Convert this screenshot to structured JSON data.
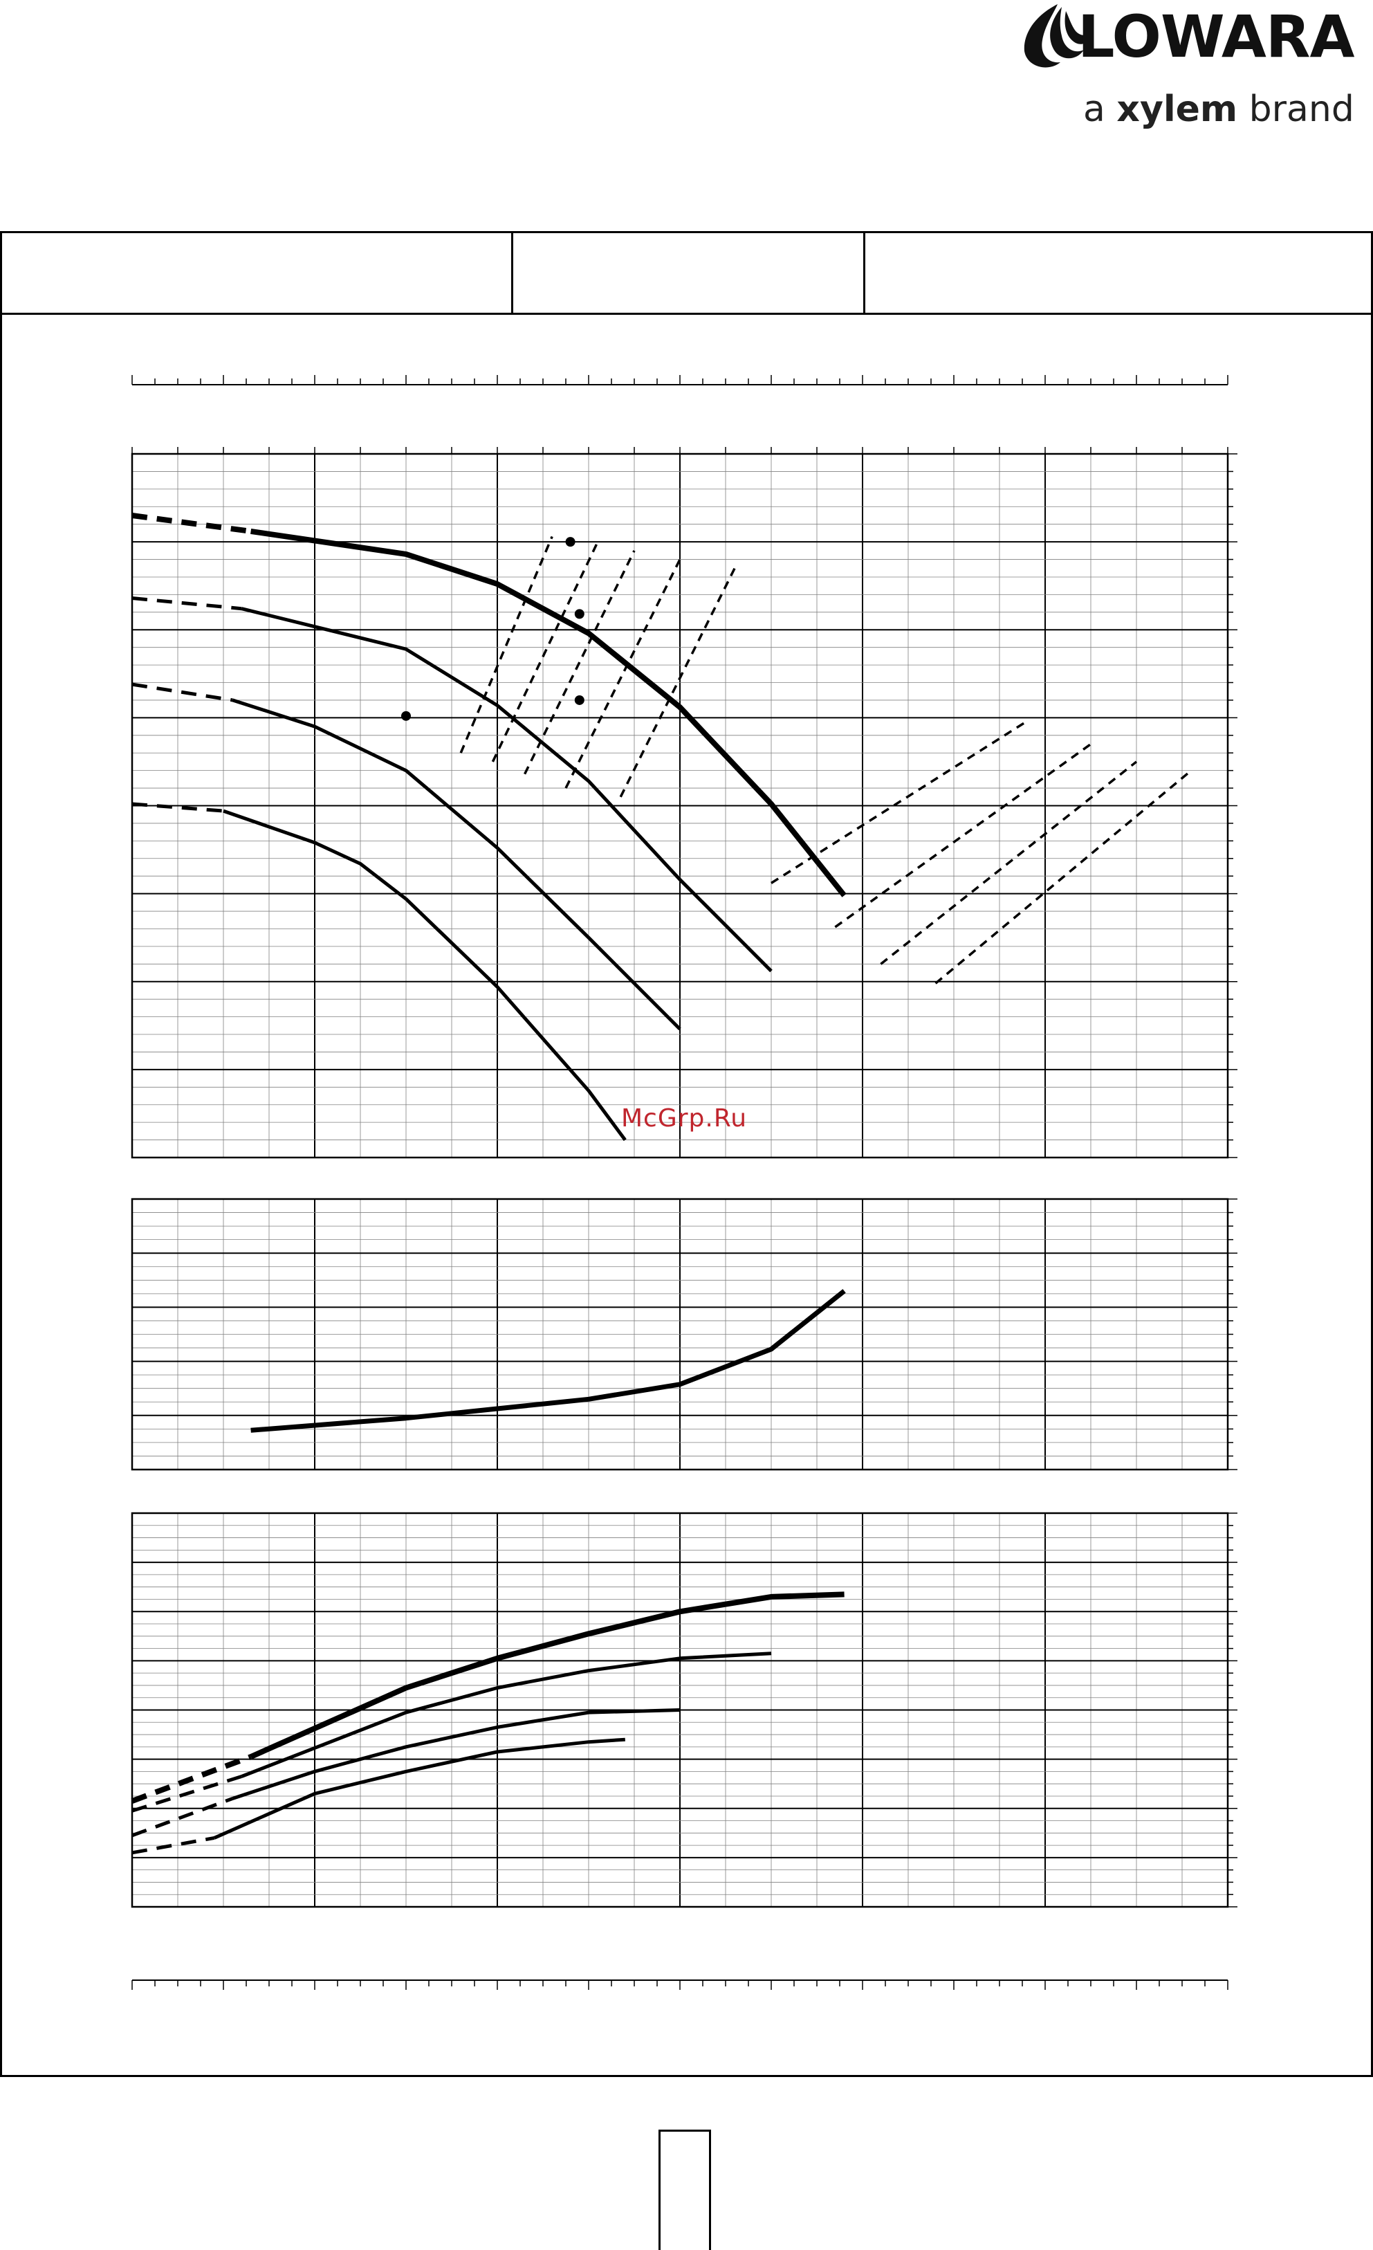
{
  "brand": {
    "name": "LOWARA",
    "tagline_a": "a ",
    "tagline_b": "xylem",
    "tagline_c": " brand"
  },
  "watermark": "McGrp.Ru",
  "colors": {
    "line": "#000000",
    "grid": "#808080",
    "watermark": "#c0252d"
  },
  "chart_data": [
    {
      "type": "line",
      "panel": "head",
      "grid": true,
      "x_unit": "flow (unlabeled)",
      "series": [
        {
          "values": [
            [
              0,
              36.5
            ],
            [
              1.3,
              35.6
            ],
            [
              3,
              34.3
            ],
            [
              4,
              32.6
            ],
            [
              5,
              29.8
            ],
            [
              6,
              25.6
            ],
            [
              7,
              20.1
            ],
            [
              7.8,
              14.9
            ]
          ]
        },
        {
          "values": [
            [
              0,
              31.8
            ],
            [
              1.2,
              31.2
            ],
            [
              3,
              28.9
            ],
            [
              4,
              25.7
            ],
            [
              5,
              21.4
            ],
            [
              6,
              15.8
            ],
            [
              7,
              10.6
            ]
          ]
        },
        {
          "values": [
            [
              0,
              26.9
            ],
            [
              1.1,
              26.0
            ],
            [
              2,
              24.5
            ],
            [
              3,
              22.0
            ],
            [
              4,
              17.6
            ],
            [
              5,
              12.5
            ],
            [
              6,
              7.3
            ]
          ]
        },
        {
          "values": [
            [
              0,
              20.1
            ],
            [
              1,
              19.7
            ],
            [
              2,
              17.9
            ],
            [
              2.5,
              16.7
            ],
            [
              3,
              14.7
            ],
            [
              4,
              9.7
            ],
            [
              5,
              3.8
            ],
            [
              5.4,
              1.0
            ]
          ]
        }
      ],
      "efficiency_markers": [
        [
          4.9,
          26.0
        ],
        [
          4.9,
          30.9
        ],
        [
          4.8,
          35.0
        ],
        [
          3.0,
          25.1
        ]
      ]
    },
    {
      "type": "line",
      "panel": "npsh",
      "grid": true,
      "series": [
        {
          "values": [
            [
              1.3,
              2.9
            ],
            [
              3,
              3.8
            ],
            [
              4,
              4.5
            ],
            [
              5,
              5.2
            ],
            [
              6,
              6.3
            ],
            [
              7,
              8.9
            ],
            [
              7.8,
              13.2
            ]
          ]
        }
      ]
    },
    {
      "type": "line",
      "panel": "power",
      "grid": true,
      "series": [
        {
          "values": [
            [
              0,
              4.3
            ],
            [
              1.3,
              6.1
            ],
            [
              3,
              8.9
            ],
            [
              4,
              10.1
            ],
            [
              5,
              11.1
            ],
            [
              6,
              12.0
            ],
            [
              7,
              12.6
            ],
            [
              7.8,
              12.7
            ]
          ]
        },
        {
          "values": [
            [
              0,
              3.9
            ],
            [
              1.2,
              5.3
            ],
            [
              3,
              7.9
            ],
            [
              4,
              8.9
            ],
            [
              5,
              9.6
            ],
            [
              6,
              10.1
            ],
            [
              7,
              10.3
            ]
          ]
        },
        {
          "values": [
            [
              0,
              2.9
            ],
            [
              1.1,
              4.4
            ],
            [
              2,
              5.5
            ],
            [
              3,
              6.5
            ],
            [
              4,
              7.3
            ],
            [
              5,
              7.9
            ],
            [
              6,
              8.0
            ]
          ]
        },
        {
          "values": [
            [
              0,
              2.2
            ],
            [
              0.9,
              2.8
            ],
            [
              2,
              4.6
            ],
            [
              3,
              5.5
            ],
            [
              4,
              6.3
            ],
            [
              5,
              6.7
            ],
            [
              5.4,
              6.8
            ]
          ]
        }
      ]
    }
  ]
}
